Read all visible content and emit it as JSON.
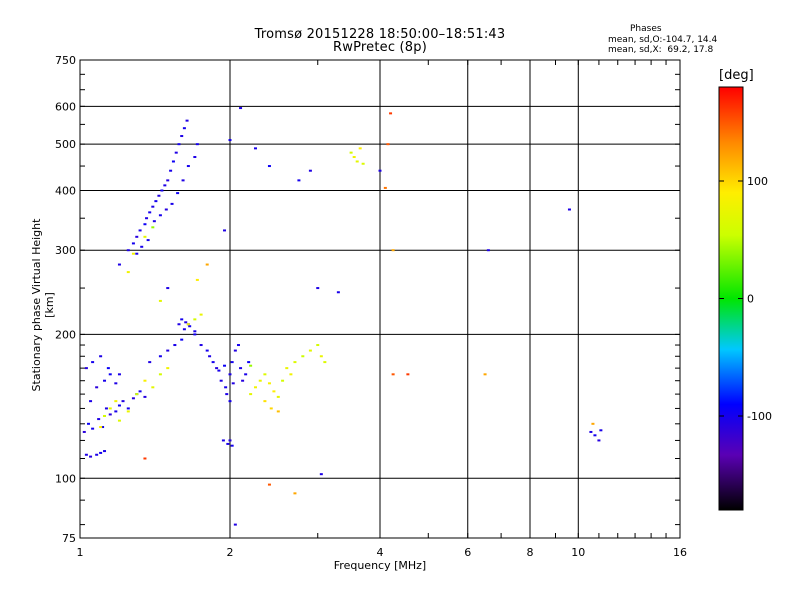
{
  "chart_data": {
    "type": "scatter",
    "title": "Tromsø 20151228 18:50:00–18:51:43",
    "subtitle": "RwPretec (8p)",
    "xlabel": "Frequency [MHz]",
    "ylabel": "Stationary phase Virtual Height [km]",
    "x_scale": "log",
    "y_scale": "log",
    "xlim": [
      1,
      16
    ],
    "ylim": [
      75,
      750
    ],
    "x_ticks": [
      1,
      2,
      4,
      6,
      8,
      10,
      16
    ],
    "y_ticks": [
      75,
      100,
      200,
      300,
      400,
      500,
      600,
      750
    ],
    "grid": true,
    "colorbar": {
      "label": "[deg]",
      "range": [
        -180,
        180
      ],
      "ticks": [
        100,
        0,
        -100
      ]
    },
    "stats": {
      "header": "Phases",
      "o_line": "mean, sd,O:-104.7, 14.4",
      "x_line": "mean, sd,X:  69.2, 17.8"
    },
    "points": [
      [
        1.03,
        112,
        -105
      ],
      [
        1.05,
        111,
        -108
      ],
      [
        1.08,
        112,
        -104
      ],
      [
        1.1,
        113,
        -100
      ],
      [
        1.12,
        114,
        -102
      ],
      [
        1.02,
        125,
        -110
      ],
      [
        1.04,
        130,
        -95
      ],
      [
        1.06,
        127,
        -100
      ],
      [
        1.09,
        133,
        -105
      ],
      [
        1.11,
        128,
        -98
      ],
      [
        1.13,
        140,
        -104
      ],
      [
        1.15,
        136,
        -110
      ],
      [
        1.18,
        138,
        -102
      ],
      [
        1.2,
        142,
        -96
      ],
      [
        1.22,
        145,
        -105
      ],
      [
        1.25,
        140,
        -100
      ],
      [
        1.28,
        147,
        -108
      ],
      [
        1.3,
        150,
        -104
      ],
      [
        1.32,
        152,
        -99
      ],
      [
        1.35,
        148,
        -107
      ],
      [
        1.05,
        145,
        -103
      ],
      [
        1.08,
        155,
        -110
      ],
      [
        1.12,
        160,
        -101
      ],
      [
        1.15,
        165,
        -96
      ],
      [
        1.18,
        158,
        -105
      ],
      [
        1.03,
        170,
        -108
      ],
      [
        1.06,
        175,
        -100
      ],
      [
        1.1,
        180,
        -104
      ],
      [
        1.14,
        170,
        -95
      ],
      [
        1.2,
        165,
        -103
      ],
      [
        1.12,
        135,
        60
      ],
      [
        1.15,
        140,
        70
      ],
      [
        1.18,
        145,
        80
      ],
      [
        1.2,
        132,
        65
      ],
      [
        1.25,
        138,
        75
      ],
      [
        1.3,
        150,
        55
      ],
      [
        1.1,
        128,
        90
      ],
      [
        1.35,
        160,
        85
      ],
      [
        1.4,
        155,
        70
      ],
      [
        1.45,
        165,
        60
      ],
      [
        1.5,
        170,
        80
      ],
      [
        1.38,
        175,
        -105
      ],
      [
        1.45,
        180,
        -100
      ],
      [
        1.5,
        185,
        -108
      ],
      [
        1.55,
        190,
        -102
      ],
      [
        1.6,
        195,
        -96
      ],
      [
        1.62,
        205,
        -104
      ],
      [
        1.65,
        210,
        -110
      ],
      [
        1.7,
        200,
        -99
      ],
      [
        1.75,
        190,
        -105
      ],
      [
        1.8,
        185,
        -100
      ],
      [
        1.58,
        210,
        -105
      ],
      [
        1.6,
        215,
        -100
      ],
      [
        1.63,
        212,
        -107
      ],
      [
        1.66,
        208,
        -98
      ],
      [
        1.7,
        203,
        -103
      ],
      [
        1.82,
        180,
        -104
      ],
      [
        1.85,
        175,
        -100
      ],
      [
        1.88,
        170,
        -108
      ],
      [
        1.9,
        168,
        -102
      ],
      [
        1.95,
        172,
        -96
      ],
      [
        1.92,
        160,
        -105
      ],
      [
        1.96,
        155,
        -101
      ],
      [
        2.0,
        165,
        -103
      ],
      [
        2.02,
        175,
        -99
      ],
      [
        2.05,
        185,
        -106
      ],
      [
        2.08,
        190,
        -100
      ],
      [
        2.1,
        170,
        -104
      ],
      [
        2.12,
        160,
        -108
      ],
      [
        2.15,
        165,
        -102
      ],
      [
        2.18,
        175,
        -95
      ],
      [
        1.97,
        150,
        -104
      ],
      [
        2.0,
        145,
        -100
      ],
      [
        2.03,
        158,
        -106
      ],
      [
        1.94,
        120,
        -104
      ],
      [
        1.98,
        118,
        -102
      ],
      [
        2.0,
        120,
        -108
      ],
      [
        2.02,
        117,
        -100
      ],
      [
        2.2,
        150,
        70
      ],
      [
        2.25,
        155,
        80
      ],
      [
        2.3,
        160,
        75
      ],
      [
        2.35,
        165,
        65
      ],
      [
        2.4,
        158,
        85
      ],
      [
        2.45,
        152,
        90
      ],
      [
        2.5,
        148,
        70
      ],
      [
        2.55,
        160,
        60
      ],
      [
        2.6,
        170,
        75
      ],
      [
        2.65,
        165,
        80
      ],
      [
        2.7,
        175,
        65
      ],
      [
        2.8,
        180,
        55
      ],
      [
        2.9,
        185,
        70
      ],
      [
        3.0,
        190,
        60
      ],
      [
        3.05,
        180,
        75
      ],
      [
        3.1,
        175,
        65
      ],
      [
        2.35,
        145,
        95
      ],
      [
        2.42,
        140,
        100
      ],
      [
        2.5,
        138,
        110
      ],
      [
        2.2,
        172,
        40
      ],
      [
        1.25,
        300,
        -104
      ],
      [
        1.28,
        310,
        -100
      ],
      [
        1.3,
        320,
        -108
      ],
      [
        1.32,
        330,
        -102
      ],
      [
        1.35,
        340,
        -96
      ],
      [
        1.36,
        350,
        -105
      ],
      [
        1.38,
        360,
        -100
      ],
      [
        1.4,
        370,
        -104
      ],
      [
        1.42,
        380,
        -99
      ],
      [
        1.44,
        390,
        -106
      ],
      [
        1.46,
        400,
        -100
      ],
      [
        1.48,
        410,
        -104
      ],
      [
        1.5,
        420,
        -108
      ],
      [
        1.52,
        440,
        -102
      ],
      [
        1.54,
        460,
        -96
      ],
      [
        1.56,
        480,
        -105
      ],
      [
        1.58,
        500,
        -100
      ],
      [
        1.6,
        520,
        -104
      ],
      [
        1.62,
        540,
        -99
      ],
      [
        1.64,
        560,
        -106
      ],
      [
        1.3,
        295,
        -103
      ],
      [
        1.33,
        305,
        -101
      ],
      [
        1.37,
        315,
        -100
      ],
      [
        1.41,
        345,
        -104
      ],
      [
        1.45,
        355,
        -100
      ],
      [
        1.49,
        365,
        -108
      ],
      [
        1.53,
        375,
        -102
      ],
      [
        1.57,
        395,
        -96
      ],
      [
        1.61,
        420,
        -105
      ],
      [
        1.65,
        450,
        -100
      ],
      [
        1.7,
        470,
        -104
      ],
      [
        1.72,
        500,
        -99
      ],
      [
        1.4,
        335,
        40
      ],
      [
        1.35,
        320,
        70
      ],
      [
        1.28,
        295,
        80
      ],
      [
        1.65,
        210,
        80
      ],
      [
        1.7,
        215,
        60
      ],
      [
        1.75,
        220,
        75
      ],
      [
        1.72,
        260,
        90
      ],
      [
        1.8,
        280,
        120
      ],
      [
        1.95,
        330,
        -105
      ],
      [
        2.0,
        510,
        -100
      ],
      [
        2.1,
        595,
        -104
      ],
      [
        2.25,
        490,
        -102
      ],
      [
        2.4,
        450,
        -96
      ],
      [
        2.9,
        440,
        -105
      ],
      [
        2.75,
        420,
        -100
      ],
      [
        3.0,
        250,
        -104
      ],
      [
        3.3,
        245,
        -102
      ],
      [
        3.5,
        480,
        60
      ],
      [
        3.55,
        470,
        80
      ],
      [
        3.6,
        460,
        70
      ],
      [
        3.65,
        490,
        90
      ],
      [
        3.7,
        455,
        65
      ],
      [
        4.15,
        500,
        150
      ],
      [
        4.2,
        580,
        160
      ],
      [
        4.1,
        405,
        140
      ],
      [
        4.0,
        440,
        -104
      ],
      [
        4.25,
        300,
        120
      ],
      [
        4.25,
        165,
        150
      ],
      [
        4.55,
        165,
        160
      ],
      [
        6.5,
        165,
        120
      ],
      [
        6.6,
        300,
        -104
      ],
      [
        9.6,
        365,
        -104
      ],
      [
        10.6,
        125,
        -104
      ],
      [
        10.8,
        123,
        -100
      ],
      [
        11.0,
        120,
        -108
      ],
      [
        11.1,
        126,
        -102
      ],
      [
        10.7,
        130,
        120
      ],
      [
        2.4,
        97,
        150
      ],
      [
        3.05,
        102,
        -104
      ],
      [
        2.7,
        93,
        120
      ],
      [
        2.05,
        80,
        -105
      ],
      [
        1.35,
        110,
        160
      ],
      [
        1.5,
        250,
        -104
      ],
      [
        1.45,
        235,
        70
      ],
      [
        1.25,
        270,
        80
      ],
      [
        1.2,
        280,
        -104
      ]
    ]
  }
}
